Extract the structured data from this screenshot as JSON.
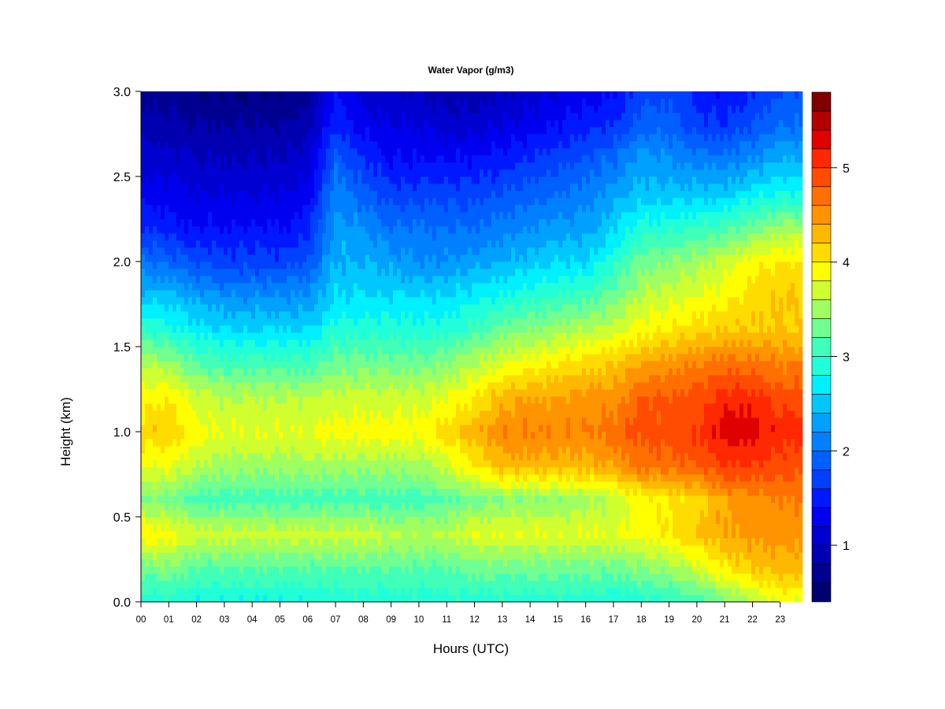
{
  "chart_data": {
    "type": "heatmap",
    "title": "Water Vapor (g/m3)",
    "xlabel": "Hours (UTC)",
    "ylabel": "Height (km)",
    "xlim": [
      0,
      23.8
    ],
    "ylim": [
      0,
      3.0
    ],
    "x_ticks": [
      "00",
      "01",
      "02",
      "03",
      "04",
      "05",
      "06",
      "07",
      "08",
      "09",
      "10",
      "11",
      "12",
      "13",
      "14",
      "15",
      "16",
      "17",
      "18",
      "19",
      "20",
      "21",
      "22",
      "23"
    ],
    "y_ticks": [
      "0.0",
      "0.5",
      "1.0",
      "1.5",
      "2.0",
      "2.5",
      "3.0"
    ],
    "x_hours": [
      0,
      1,
      2,
      3,
      4,
      5,
      6,
      7,
      8,
      9,
      10,
      11,
      12,
      13,
      14,
      15,
      16,
      17,
      18,
      19,
      20,
      21,
      22,
      23
    ],
    "heights_km": [
      0.0,
      0.2,
      0.4,
      0.6,
      0.8,
      1.0,
      1.2,
      1.4,
      1.6,
      1.8,
      2.0,
      2.2,
      2.4,
      2.6,
      2.8,
      3.0
    ],
    "values": [
      [
        2.9,
        2.9,
        2.8,
        2.8,
        2.8,
        2.8,
        2.8,
        2.9,
        2.9,
        2.9,
        2.9,
        2.9,
        2.9,
        2.9,
        2.9,
        2.9,
        2.9,
        2.8,
        2.9,
        3.0,
        3.1,
        3.3,
        3.6,
        3.8
      ],
      [
        3.3,
        3.4,
        3.2,
        3.2,
        3.2,
        3.2,
        3.2,
        3.2,
        3.2,
        3.2,
        3.2,
        3.2,
        3.3,
        3.3,
        3.3,
        3.3,
        3.3,
        3.3,
        3.4,
        3.5,
        3.7,
        4.0,
        4.2,
        4.3
      ],
      [
        4.0,
        3.9,
        3.7,
        3.7,
        3.7,
        3.7,
        3.7,
        3.7,
        3.7,
        3.6,
        3.6,
        3.6,
        3.8,
        3.8,
        3.8,
        3.8,
        3.8,
        3.8,
        3.9,
        4.0,
        4.2,
        4.4,
        4.5,
        4.5
      ],
      [
        3.4,
        3.3,
        3.1,
        3.1,
        3.1,
        3.1,
        3.1,
        3.1,
        3.1,
        3.1,
        3.1,
        3.2,
        3.3,
        3.4,
        3.4,
        3.4,
        3.5,
        3.6,
        3.9,
        4.0,
        4.1,
        4.4,
        4.5,
        4.6
      ],
      [
        3.8,
        3.8,
        3.6,
        3.5,
        3.5,
        3.5,
        3.5,
        3.5,
        3.5,
        3.5,
        3.5,
        3.7,
        4.0,
        4.3,
        4.3,
        4.3,
        4.3,
        4.4,
        4.7,
        4.7,
        4.8,
        5.0,
        5.0,
        4.9
      ],
      [
        4.1,
        4.2,
        3.9,
        3.8,
        3.8,
        3.8,
        3.8,
        3.9,
        3.9,
        3.9,
        3.9,
        4.1,
        4.3,
        4.6,
        4.6,
        4.6,
        4.6,
        4.7,
        4.9,
        4.9,
        5.0,
        5.3,
        5.3,
        5.1
      ],
      [
        3.9,
        4.0,
        3.7,
        3.6,
        3.6,
        3.6,
        3.6,
        3.7,
        3.7,
        3.7,
        3.7,
        3.8,
        4.0,
        4.3,
        4.4,
        4.4,
        4.5,
        4.5,
        4.8,
        4.8,
        4.9,
        5.1,
        5.1,
        4.9
      ],
      [
        3.6,
        3.5,
        3.2,
        3.1,
        3.1,
        3.1,
        3.1,
        3.3,
        3.3,
        3.3,
        3.3,
        3.4,
        3.6,
        3.8,
        3.9,
        4.0,
        4.1,
        4.2,
        4.4,
        4.5,
        4.6,
        4.7,
        4.7,
        4.6
      ],
      [
        3.0,
        2.9,
        2.7,
        2.6,
        2.6,
        2.6,
        2.6,
        2.9,
        2.9,
        2.9,
        2.9,
        2.9,
        3.1,
        3.3,
        3.4,
        3.5,
        3.6,
        3.7,
        3.9,
        4.0,
        4.1,
        4.2,
        4.2,
        4.2
      ],
      [
        2.5,
        2.5,
        2.3,
        2.2,
        2.2,
        2.2,
        2.2,
        2.6,
        2.6,
        2.6,
        2.6,
        2.6,
        2.7,
        2.8,
        2.9,
        3.0,
        3.1,
        3.3,
        3.6,
        3.7,
        3.8,
        3.9,
        4.1,
        4.2
      ],
      [
        2.0,
        1.9,
        1.8,
        1.7,
        1.7,
        1.7,
        1.8,
        2.4,
        2.4,
        2.3,
        2.2,
        2.2,
        2.3,
        2.4,
        2.5,
        2.6,
        2.6,
        2.9,
        3.3,
        3.4,
        3.5,
        3.7,
        3.9,
        4.0
      ],
      [
        1.6,
        1.5,
        1.4,
        1.4,
        1.4,
        1.4,
        1.5,
        2.3,
        2.2,
        2.0,
        2.0,
        2.0,
        2.0,
        2.1,
        2.2,
        2.3,
        2.3,
        2.6,
        2.9,
        2.9,
        3.0,
        3.1,
        3.3,
        3.5
      ],
      [
        1.3,
        1.3,
        1.2,
        1.2,
        1.2,
        1.2,
        1.3,
        2.1,
        1.9,
        1.7,
        1.7,
        1.7,
        1.7,
        1.8,
        1.9,
        2.0,
        2.1,
        2.3,
        2.5,
        2.5,
        2.5,
        2.5,
        2.7,
        2.8
      ],
      [
        1.1,
        1.1,
        1.0,
        1.0,
        1.0,
        1.0,
        1.1,
        1.9,
        1.6,
        1.4,
        1.4,
        1.4,
        1.4,
        1.5,
        1.6,
        1.7,
        1.8,
        2.0,
        2.3,
        2.2,
        2.1,
        2.1,
        2.2,
        2.4
      ],
      [
        0.9,
        0.9,
        0.8,
        0.8,
        0.8,
        0.8,
        0.9,
        1.6,
        1.3,
        1.2,
        1.2,
        1.1,
        1.1,
        1.2,
        1.3,
        1.4,
        1.5,
        1.6,
        1.9,
        1.9,
        1.7,
        1.6,
        1.8,
        2.0
      ],
      [
        0.7,
        0.7,
        0.6,
        0.6,
        0.6,
        0.6,
        0.7,
        1.4,
        1.1,
        1.0,
        1.0,
        0.9,
        0.9,
        1.0,
        1.1,
        1.2,
        1.3,
        1.4,
        1.7,
        1.7,
        1.5,
        1.4,
        1.6,
        1.8
      ]
    ],
    "colorbar": {
      "range": [
        0.4,
        5.8
      ],
      "step": 0.2,
      "ticks": [
        "1",
        "2",
        "3",
        "4",
        "5"
      ],
      "tick_values": [
        1,
        2,
        3,
        4,
        5
      ],
      "colors": [
        "#00006e",
        "#000090",
        "#0000b0",
        "#0000d0",
        "#0000f0",
        "#0018ff",
        "#0040ff",
        "#0060ff",
        "#0080ff",
        "#00a0ff",
        "#00c8ff",
        "#00f0ff",
        "#20ffd8",
        "#40ffb8",
        "#70ff90",
        "#a0ff60",
        "#d0ff30",
        "#ffff00",
        "#ffdc00",
        "#ffb800",
        "#ff9400",
        "#ff7000",
        "#ff4c00",
        "#ff2800",
        "#e00000",
        "#b00000",
        "#800000"
      ]
    }
  }
}
